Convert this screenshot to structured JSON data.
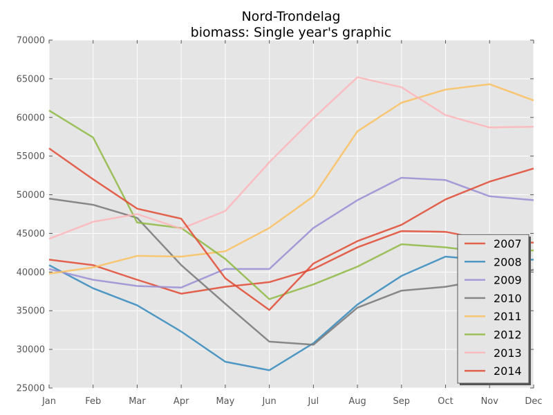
{
  "chart_data": {
    "type": "line",
    "title_line1": "Nord-Trondelag",
    "title_line2": "biomass: Single year's graphic",
    "xlabel": "",
    "ylabel": "",
    "categories": [
      "Jan",
      "Feb",
      "Mar",
      "Apr",
      "May",
      "Jun",
      "Jul",
      "Aug",
      "Sep",
      "Oct",
      "Nov",
      "Dec"
    ],
    "ylim": [
      25000,
      70000
    ],
    "yticks": [
      25000,
      30000,
      35000,
      40000,
      45000,
      50000,
      55000,
      60000,
      65000,
      70000
    ],
    "ytick_labels": [
      "25000",
      "30000",
      "35000",
      "40000",
      "45000",
      "50000",
      "55000",
      "60000",
      "65000",
      "70000"
    ],
    "grid": true,
    "legend_position": "bottom-right",
    "series": [
      {
        "name": "2007",
        "color": "#e24a33",
        "values": [
          41600,
          40900,
          39000,
          37200,
          38100,
          38700,
          40400,
          43200,
          45300,
          45200,
          44100,
          43800
        ]
      },
      {
        "name": "2008",
        "color": "#348abd",
        "values": [
          40900,
          37900,
          35700,
          32300,
          28400,
          27300,
          30800,
          35800,
          39500,
          42000,
          41500,
          41600
        ]
      },
      {
        "name": "2009",
        "color": "#988ed5",
        "values": [
          40400,
          39000,
          38200,
          38000,
          40400,
          40400,
          45700,
          49300,
          52200,
          51900,
          49800,
          49300
        ]
      },
      {
        "name": "2010",
        "color": "#777777",
        "values": [
          49500,
          48700,
          47000,
          40900,
          35900,
          31000,
          30600,
          35400,
          37600,
          38100,
          39100,
          40300
        ]
      },
      {
        "name": "2011",
        "color": "#fbc15e",
        "values": [
          39800,
          40600,
          42100,
          42000,
          42700,
          45700,
          49800,
          58200,
          61900,
          63600,
          64300,
          62200
        ]
      },
      {
        "name": "2012",
        "color": "#8eba42",
        "values": [
          60900,
          57400,
          46400,
          45700,
          41700,
          36500,
          38400,
          40700,
          43600,
          43200,
          42500,
          42800
        ]
      },
      {
        "name": "2013",
        "color": "#ffb5b8",
        "values": [
          44300,
          46500,
          47500,
          45600,
          47900,
          54200,
          59900,
          65200,
          63900,
          60300,
          58700,
          58800
        ]
      },
      {
        "name": "2014",
        "color": "#e24a33",
        "values": [
          56000,
          52000,
          48200,
          46900,
          39200,
          35100,
          41100,
          44000,
          46100,
          49400,
          51700,
          53400
        ]
      }
    ]
  }
}
